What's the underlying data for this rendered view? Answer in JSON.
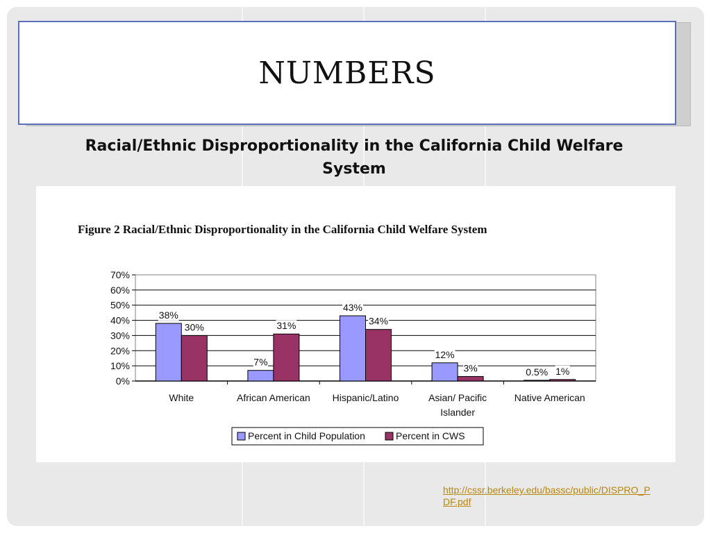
{
  "slide": {
    "title": "NUMBERS",
    "subtitle": "Racial/Ethnic Disproportionality in the California Child Welfare System",
    "source_link": "http://cssr.berkeley.edu/bassc/public/DISPRO_PDF.pdf"
  },
  "chart_data": {
    "type": "bar",
    "title": "Figure 2 Racial/Ethnic Disproportionality in the California Child Welfare System",
    "categories": [
      [
        "White"
      ],
      [
        "African American"
      ],
      [
        "Hispanic/Latino"
      ],
      [
        "Asian/ Pacific",
        "Islander"
      ],
      [
        "Native American"
      ]
    ],
    "series": [
      {
        "name": "Percent in Child Population",
        "values": [
          38,
          7,
          43,
          12,
          0.5
        ],
        "labels": [
          "38%",
          "7%",
          "43%",
          "12%",
          "0.5%"
        ],
        "color": "#9999ff"
      },
      {
        "name": "Percent in CWS",
        "values": [
          30,
          31,
          34,
          3,
          1
        ],
        "labels": [
          "30%",
          "31%",
          "34%",
          "3%",
          "1%"
        ],
        "color": "#993366"
      }
    ],
    "ylim": [
      0,
      70
    ],
    "yticks": [
      "0%",
      "10%",
      "20%",
      "30%",
      "40%",
      "50%",
      "60%",
      "70%"
    ],
    "grid": true,
    "legend": "bottom"
  }
}
